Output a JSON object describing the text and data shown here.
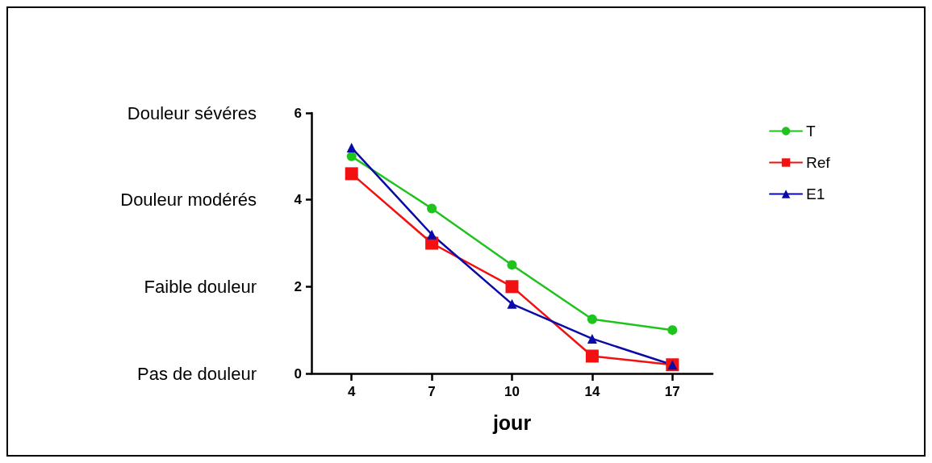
{
  "chart_data": {
    "type": "line",
    "xlabel": "jour",
    "categories": [
      "4",
      "7",
      "10",
      "14",
      "17"
    ],
    "series": [
      {
        "name": "T",
        "color": "#1ec31e",
        "marker": "circle",
        "values": [
          5.0,
          3.8,
          2.5,
          1.25,
          1.0
        ]
      },
      {
        "name": "Ref",
        "color": "#f21010",
        "marker": "square",
        "values": [
          4.6,
          3.0,
          2.0,
          0.4,
          0.2
        ]
      },
      {
        "name": "E1",
        "color": "#0a0aa8",
        "marker": "triangle",
        "values": [
          5.2,
          3.2,
          1.6,
          0.8,
          0.2
        ]
      }
    ],
    "ylim": [
      0,
      6
    ],
    "yticks": [
      0,
      2,
      4,
      6
    ],
    "grid": false,
    "legend": "right",
    "annotations": [
      "Douleur sévéres",
      "Douleur modérés",
      "Faible douleur",
      "Pas de douleur"
    ]
  }
}
